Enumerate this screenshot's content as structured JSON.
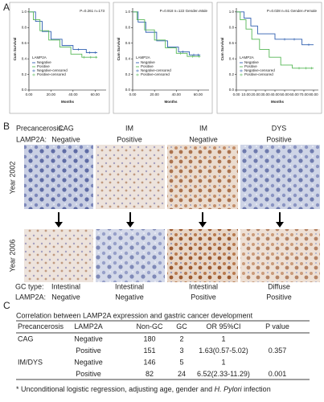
{
  "panel_labels": [
    "A",
    "B",
    "C"
  ],
  "chart_data": [
    {
      "type": "line",
      "annotation": "P=0.261  n=173",
      "xlabel": "Months",
      "ylabel": "Cum Survival",
      "legend_title": "LAMP2A",
      "xlim": [
        0,
        70
      ],
      "xticks": [
        {
          "value": 0,
          "label": "0.00"
        },
        {
          "value": 20,
          "label": "20.00"
        },
        {
          "value": 40,
          "label": "40.00"
        },
        {
          "value": 60,
          "label": "60.00"
        }
      ],
      "ylim": [
        0,
        1.05
      ],
      "yticks": [
        {
          "value": 0,
          "label": "0.0"
        },
        {
          "value": 0.2,
          "label": "0.2"
        },
        {
          "value": 0.4,
          "label": "0.4"
        },
        {
          "value": 0.6,
          "label": "0.6"
        },
        {
          "value": 0.8,
          "label": "0.8"
        },
        {
          "value": 1,
          "label": "1.0"
        }
      ],
      "series": [
        {
          "name": "Negative",
          "color": "#2f5fb0",
          "style": "step",
          "x": [
            0,
            6,
            6,
            12,
            12,
            20,
            20,
            30,
            30,
            40,
            40,
            52,
            52,
            62
          ],
          "values": [
            1,
            1,
            0.88,
            0.88,
            0.75,
            0.75,
            0.65,
            0.65,
            0.57,
            0.57,
            0.52,
            0.52,
            0.48,
            0.48
          ]
        },
        {
          "name": "Positive",
          "color": "#56b856",
          "style": "step",
          "x": [
            0,
            4,
            4,
            10,
            10,
            18,
            18,
            28,
            28,
            38,
            38,
            48,
            48,
            62
          ],
          "values": [
            1,
            1,
            0.9,
            0.9,
            0.76,
            0.76,
            0.64,
            0.64,
            0.55,
            0.55,
            0.46,
            0.46,
            0.42,
            0.42
          ]
        },
        {
          "name": "Negative-censored",
          "color": "#2f5fb0",
          "style": "censor",
          "x": [
            45,
            55,
            60
          ],
          "values": [
            0.52,
            0.48,
            0.48
          ]
        },
        {
          "name": "Positive-censored",
          "color": "#56b856",
          "style": "censor",
          "x": [
            50,
            56,
            61
          ],
          "values": [
            0.42,
            0.42,
            0.42
          ]
        }
      ]
    },
    {
      "type": "line",
      "annotation": "P=0.918  n=122  Gender=Male",
      "xlabel": "Months",
      "ylabel": "Cum Survival",
      "legend_title": "LAMP2A",
      "xlim": [
        0,
        70
      ],
      "xticks": [
        {
          "value": 0,
          "label": "0.00"
        },
        {
          "value": 20,
          "label": "20.00"
        },
        {
          "value": 40,
          "label": "40.00"
        },
        {
          "value": 60,
          "label": "60.00"
        }
      ],
      "ylim": [
        0,
        1.05
      ],
      "yticks": [
        {
          "value": 0,
          "label": "0.0"
        },
        {
          "value": 0.2,
          "label": "0.2"
        },
        {
          "value": 0.4,
          "label": "0.4"
        },
        {
          "value": 0.6,
          "label": "0.6"
        },
        {
          "value": 0.8,
          "label": "0.8"
        },
        {
          "value": 1,
          "label": "1.0"
        }
      ],
      "series": [
        {
          "name": "Negative",
          "color": "#2f5fb0",
          "style": "step",
          "x": [
            0,
            5,
            5,
            12,
            12,
            22,
            22,
            32,
            32,
            42,
            42,
            52,
            52,
            62
          ],
          "values": [
            1,
            1,
            0.87,
            0.87,
            0.74,
            0.74,
            0.63,
            0.63,
            0.55,
            0.55,
            0.49,
            0.49,
            0.45,
            0.45
          ]
        },
        {
          "name": "Positive",
          "color": "#56b856",
          "style": "step",
          "x": [
            0,
            4,
            4,
            11,
            11,
            20,
            20,
            30,
            30,
            40,
            40,
            50,
            50,
            62
          ],
          "values": [
            1,
            1,
            0.9,
            0.9,
            0.77,
            0.77,
            0.64,
            0.64,
            0.54,
            0.54,
            0.47,
            0.47,
            0.43,
            0.43
          ]
        },
        {
          "name": "Negative-censored",
          "color": "#2f5fb0",
          "style": "censor",
          "x": [
            46,
            56,
            60
          ],
          "values": [
            0.49,
            0.45,
            0.45
          ]
        },
        {
          "name": "Positive-censored",
          "color": "#56b856",
          "style": "censor",
          "x": [
            44,
            55,
            61
          ],
          "values": [
            0.47,
            0.43,
            0.43
          ]
        }
      ]
    },
    {
      "type": "line",
      "annotation": "P=0.028  n=51  Gender=Female",
      "xlabel": "Months",
      "ylabel": "Cum Survival",
      "legend_title": "LAMP2A",
      "xlim": [
        0,
        85
      ],
      "xticks": [
        {
          "value": 0,
          "label": "0.00"
        },
        {
          "value": 10,
          "label": "10.00"
        },
        {
          "value": 20,
          "label": "20.00"
        },
        {
          "value": 30,
          "label": "30.00"
        },
        {
          "value": 40,
          "label": "40.00"
        },
        {
          "value": 50,
          "label": "50.00"
        },
        {
          "value": 60,
          "label": "60.00"
        },
        {
          "value": 70,
          "label": "70.00"
        },
        {
          "value": 80,
          "label": "80.00"
        }
      ],
      "ylim": [
        0,
        1.05
      ],
      "yticks": [
        {
          "value": 0,
          "label": "0.0"
        },
        {
          "value": 0.2,
          "label": "0.2"
        },
        {
          "value": 0.4,
          "label": "0.4"
        },
        {
          "value": 0.6,
          "label": "0.6"
        },
        {
          "value": 0.8,
          "label": "0.8"
        },
        {
          "value": 1,
          "label": "1.0"
        }
      ],
      "series": [
        {
          "name": "Negative",
          "color": "#2f5fb0",
          "style": "step",
          "x": [
            0,
            8,
            8,
            15,
            15,
            22,
            22,
            40,
            40,
            68,
            68,
            80
          ],
          "values": [
            1,
            1,
            0.92,
            0.92,
            0.82,
            0.82,
            0.72,
            0.72,
            0.65,
            0.65,
            0.58,
            0.58
          ]
        },
        {
          "name": "Positive",
          "color": "#56b856",
          "style": "step",
          "x": [
            0,
            4,
            4,
            10,
            10,
            16,
            16,
            24,
            24,
            34,
            34,
            46,
            46,
            58,
            58,
            80
          ],
          "values": [
            1,
            1,
            0.9,
            0.9,
            0.78,
            0.78,
            0.65,
            0.65,
            0.52,
            0.52,
            0.42,
            0.42,
            0.32,
            0.32,
            0.28,
            0.28
          ]
        },
        {
          "name": "Negative-censored",
          "color": "#2f5fb0",
          "style": "censor",
          "x": [
            50,
            60,
            75
          ],
          "values": [
            0.65,
            0.65,
            0.58
          ]
        },
        {
          "name": "Positive-censored",
          "color": "#56b856",
          "style": "censor",
          "x": [
            65,
            72,
            78
          ],
          "values": [
            0.28,
            0.28,
            0.28
          ]
        }
      ]
    }
  ],
  "histology": {
    "header_labels": [
      "Precancerosis:",
      "LAMP2A:"
    ],
    "row_labels": [
      "Year 2002",
      "Year 2006"
    ],
    "footer_labels": [
      "GC type:",
      "LAMP2A:"
    ],
    "columns": [
      {
        "precancerosis": "CAG",
        "lamp2a_2002": "Negative",
        "gc_type": "Intestinal",
        "lamp2a_2006": "Negative"
      },
      {
        "precancerosis": "IM",
        "lamp2a_2002": "Positive",
        "gc_type": "Intestinal",
        "lamp2a_2006": "Negative"
      },
      {
        "precancerosis": "IM",
        "lamp2a_2002": "Negative",
        "gc_type": "Intestinal",
        "lamp2a_2006": "Positive"
      },
      {
        "precancerosis": "DYS",
        "lamp2a_2002": "Positive",
        "gc_type": "Diffuse",
        "lamp2a_2006": "Positive"
      }
    ]
  },
  "table": {
    "title": "Correlation between LAMP2A expression and gastric cancer development",
    "header": [
      "Precancerosis",
      "LAMP2A",
      "Non-GC",
      "GC",
      "OR 95%CI",
      "P value"
    ],
    "rows": [
      [
        "CAG",
        "Negative",
        180,
        2,
        1,
        null
      ],
      [
        null,
        "Positive",
        151,
        3,
        "1.63(0.57-5.02)",
        0.357
      ],
      [
        "IM/DYS",
        "Negative",
        146,
        5,
        1,
        null
      ],
      [
        null,
        "Positive",
        82,
        24,
        "6.52(2.33-11.29)",
        0.001
      ]
    ],
    "footnote": {
      "before": "* Unconditional logistic regression, adjusting age, gender and ",
      "italic": "H. Pylori",
      "after": " infection"
    }
  }
}
